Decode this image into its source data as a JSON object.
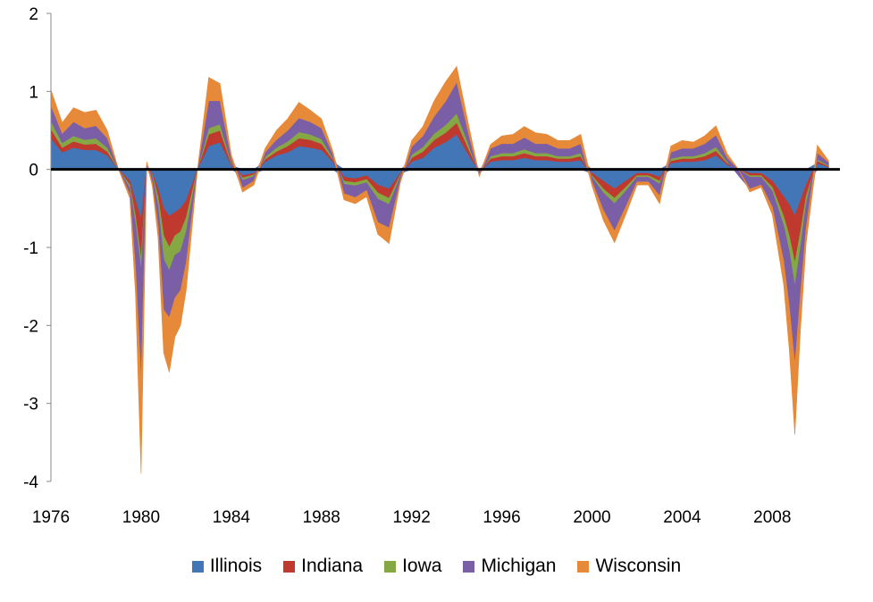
{
  "chart_data": {
    "type": "area",
    "stacked": true,
    "title": "",
    "xlabel": "",
    "ylabel": "",
    "ylim": [
      -4,
      2
    ],
    "xlim": [
      1976,
      2011
    ],
    "y_ticks": [
      "2",
      "1",
      "0",
      "-1",
      "-2",
      "-3",
      "-4"
    ],
    "x_ticks": [
      "1976",
      "1980",
      "1984",
      "1988",
      "1992",
      "1996",
      "2000",
      "2004",
      "2008"
    ],
    "grid": false,
    "legend_position": "bottom",
    "x": [
      1976.0,
      1976.5,
      1977.0,
      1977.5,
      1978.0,
      1978.5,
      1979.0,
      1979.5,
      1979.75,
      1980.0,
      1980.25,
      1980.5,
      1980.75,
      1981.0,
      1981.25,
      1981.5,
      1981.75,
      1982.0,
      1982.5,
      1983.0,
      1983.5,
      1984.0,
      1984.5,
      1985.0,
      1985.5,
      1986.0,
      1986.5,
      1987.0,
      1987.5,
      1988.0,
      1988.5,
      1989.0,
      1989.5,
      1990.0,
      1990.5,
      1991.0,
      1991.5,
      1992.0,
      1992.5,
      1993.0,
      1993.5,
      1994.0,
      1994.5,
      1995.0,
      1995.5,
      1996.0,
      1996.5,
      1997.0,
      1997.5,
      1998.0,
      1998.5,
      1999.0,
      1999.5,
      2000.0,
      2000.5,
      2001.0,
      2001.5,
      2002.0,
      2002.5,
      2003.0,
      2003.5,
      2004.0,
      2004.5,
      2005.0,
      2005.5,
      2006.0,
      2006.5,
      2007.0,
      2007.5,
      2008.0,
      2008.5,
      2008.75,
      2009.0,
      2009.25,
      2009.5,
      2010.0,
      2010.5
    ],
    "series": [
      {
        "name": "Illinois",
        "color": "#4376b7",
        "values": [
          0.4,
          0.22,
          0.28,
          0.25,
          0.25,
          0.18,
          0.0,
          -0.15,
          -0.4,
          -0.65,
          0.02,
          -0.05,
          -0.25,
          -0.5,
          -0.6,
          -0.55,
          -0.5,
          -0.4,
          0.0,
          0.3,
          0.35,
          0.05,
          -0.08,
          -0.05,
          0.1,
          0.18,
          0.22,
          0.3,
          0.28,
          0.25,
          0.1,
          -0.1,
          -0.12,
          -0.08,
          -0.2,
          -0.25,
          -0.05,
          0.1,
          0.15,
          0.28,
          0.35,
          0.45,
          0.2,
          -0.02,
          0.1,
          0.12,
          0.12,
          0.15,
          0.12,
          0.12,
          0.1,
          0.1,
          0.12,
          -0.05,
          -0.15,
          -0.25,
          -0.15,
          -0.05,
          -0.05,
          -0.1,
          0.08,
          0.1,
          0.1,
          0.12,
          0.18,
          0.06,
          0.0,
          -0.05,
          -0.05,
          -0.15,
          -0.35,
          -0.45,
          -0.6,
          -0.4,
          -0.2,
          0.08,
          0.03
        ]
      },
      {
        "name": "Indiana",
        "color": "#c0392f",
        "values": [
          0.12,
          0.06,
          0.08,
          0.07,
          0.08,
          0.05,
          0.0,
          -0.05,
          -0.2,
          -0.5,
          0.01,
          -0.02,
          -0.1,
          -0.35,
          -0.4,
          -0.3,
          -0.3,
          -0.22,
          0.0,
          0.15,
          0.15,
          0.02,
          -0.03,
          -0.02,
          0.03,
          0.05,
          0.08,
          0.1,
          0.1,
          0.08,
          0.03,
          -0.05,
          -0.05,
          -0.05,
          -0.1,
          -0.12,
          -0.02,
          0.05,
          0.08,
          0.1,
          0.12,
          0.15,
          0.08,
          -0.01,
          0.04,
          0.05,
          0.05,
          0.06,
          0.05,
          0.05,
          0.04,
          0.04,
          0.05,
          -0.03,
          -0.1,
          -0.12,
          -0.08,
          -0.03,
          -0.03,
          -0.05,
          0.03,
          0.04,
          0.04,
          0.05,
          0.06,
          0.02,
          0.0,
          -0.03,
          -0.03,
          -0.08,
          -0.25,
          -0.4,
          -0.6,
          -0.4,
          -0.15,
          0.03,
          0.01
        ]
      },
      {
        "name": "Iowa",
        "color": "#86a844",
        "values": [
          0.1,
          0.06,
          0.07,
          0.06,
          0.07,
          0.05,
          0.0,
          -0.04,
          -0.1,
          -0.15,
          0.01,
          -0.02,
          -0.12,
          -0.3,
          -0.3,
          -0.25,
          -0.25,
          -0.18,
          0.0,
          0.08,
          0.08,
          0.02,
          -0.03,
          -0.02,
          0.03,
          0.05,
          0.06,
          0.08,
          0.07,
          0.06,
          0.02,
          -0.04,
          -0.04,
          -0.04,
          -0.08,
          -0.08,
          -0.02,
          0.04,
          0.06,
          0.08,
          0.1,
          0.12,
          0.06,
          -0.01,
          0.03,
          0.04,
          0.04,
          0.05,
          0.04,
          0.04,
          0.03,
          0.03,
          0.04,
          -0.02,
          -0.05,
          -0.07,
          -0.05,
          -0.02,
          -0.02,
          -0.04,
          0.03,
          0.03,
          0.03,
          0.04,
          0.05,
          0.02,
          0.0,
          -0.02,
          -0.02,
          -0.05,
          -0.12,
          -0.2,
          -0.3,
          -0.2,
          -0.1,
          0.02,
          0.01
        ]
      },
      {
        "name": "Michigan",
        "color": "#7a5ea6",
        "values": [
          0.2,
          0.12,
          0.18,
          0.15,
          0.16,
          0.12,
          0.0,
          -0.08,
          -0.55,
          -1.4,
          0.04,
          -0.08,
          -0.25,
          -0.65,
          -0.6,
          -0.55,
          -0.5,
          -0.4,
          0.0,
          0.35,
          0.3,
          0.05,
          -0.1,
          -0.06,
          0.06,
          0.1,
          0.14,
          0.18,
          0.16,
          0.14,
          0.05,
          -0.12,
          -0.15,
          -0.1,
          -0.3,
          -0.3,
          -0.05,
          0.1,
          0.14,
          0.22,
          0.3,
          0.4,
          0.15,
          -0.03,
          0.1,
          0.12,
          0.12,
          0.15,
          0.12,
          0.12,
          0.1,
          0.1,
          0.12,
          -0.06,
          -0.22,
          -0.35,
          -0.2,
          -0.06,
          -0.06,
          -0.15,
          0.08,
          0.1,
          0.1,
          0.12,
          0.15,
          0.05,
          -0.08,
          -0.15,
          -0.1,
          -0.2,
          -0.45,
          -0.7,
          -1.0,
          -0.6,
          -0.3,
          0.08,
          0.04
        ]
      },
      {
        "name": "Wisconsin",
        "color": "#e68a3a",
        "values": [
          0.2,
          0.14,
          0.18,
          0.2,
          0.2,
          0.1,
          0.0,
          -0.05,
          -0.35,
          -1.2,
          0.02,
          -0.05,
          -0.15,
          -0.55,
          -0.7,
          -0.5,
          -0.45,
          -0.35,
          0.0,
          0.3,
          0.22,
          0.05,
          -0.05,
          -0.05,
          0.05,
          0.12,
          0.15,
          0.2,
          0.15,
          0.12,
          0.04,
          -0.08,
          -0.08,
          -0.08,
          -0.15,
          -0.2,
          -0.03,
          0.08,
          0.12,
          0.2,
          0.25,
          0.2,
          0.12,
          -0.02,
          0.05,
          0.1,
          0.12,
          0.14,
          0.14,
          0.12,
          0.1,
          0.1,
          0.12,
          -0.05,
          -0.13,
          -0.15,
          -0.1,
          -0.04,
          -0.04,
          -0.1,
          0.08,
          0.1,
          0.08,
          0.1,
          0.12,
          0.05,
          0.0,
          -0.04,
          -0.03,
          -0.1,
          -0.3,
          -0.55,
          -0.9,
          -0.45,
          -0.2,
          0.1,
          0.02
        ]
      }
    ]
  }
}
